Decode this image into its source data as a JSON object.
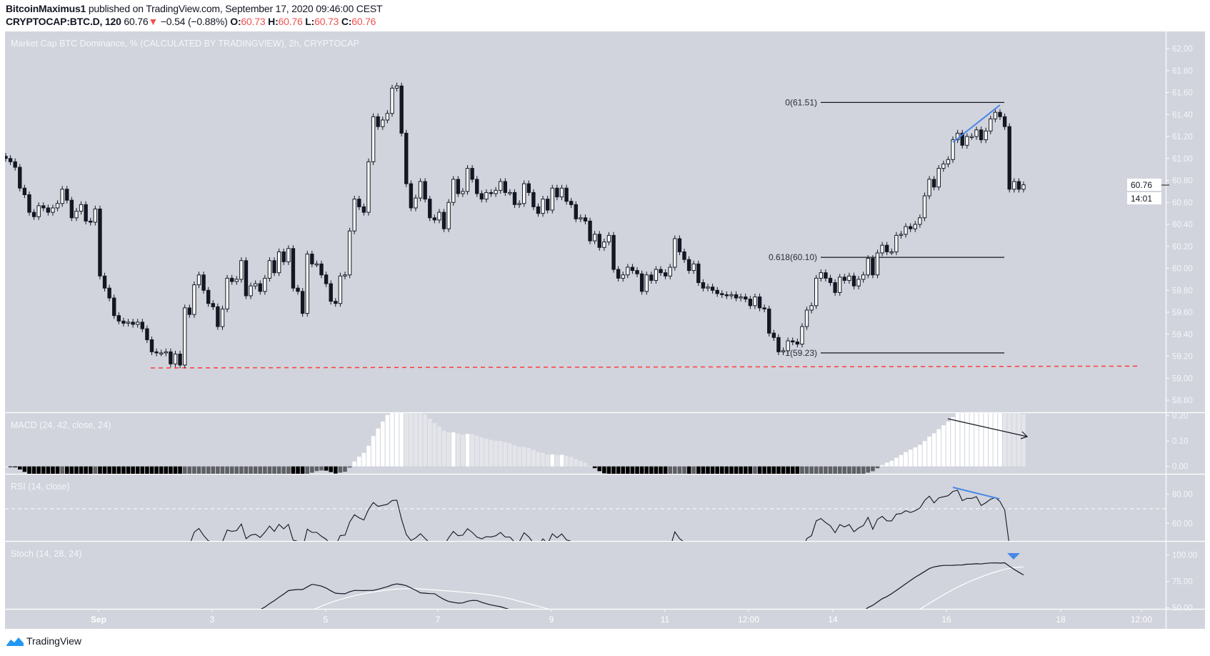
{
  "header": {
    "author": "BitcoinMaximus1",
    "published": " published on TradingView.com, September 17, 2020 09:46:00 CEST"
  },
  "symbol_bar": {
    "symbol": "CRYPTOCAP:BTC.D, 120",
    "last": "60.76",
    "change": "−0.54 (−0.88%)",
    "o_label": "O:",
    "o": "60.73",
    "h_label": "H:",
    "h": "60.76",
    "l_label": "L:",
    "l": "60.73",
    "c_label": "C:",
    "c": "60.76",
    "down_icon": "triangle-down-icon",
    "down_color": "#ef5350"
  },
  "chart_data": {
    "type": "candlestick",
    "title": "Market Cap BTC Dominance, % (CALCULATED BY TRADINGVIEW), 2h, CRYPTOCAP",
    "interval": "2h",
    "background": "#d1d4dc",
    "up_color": "#ffffff",
    "down_color": "#131722",
    "x_ticks": [
      "Sep",
      "3",
      "5",
      "7",
      "9",
      "11",
      "12:00",
      "14",
      "16",
      "18",
      "12:00"
    ],
    "y_ticks": [
      "62.00",
      "61.80",
      "61.60",
      "61.40",
      "61.20",
      "61.00",
      "60.80",
      "60.60",
      "60.40",
      "60.20",
      "60.00",
      "59.80",
      "59.60",
      "59.40",
      "59.20",
      "59.00",
      "58.80"
    ],
    "first_open": 61.02,
    "close": [
      61.0,
      60.97,
      60.92,
      60.73,
      60.67,
      60.51,
      60.47,
      60.57,
      60.55,
      60.51,
      60.55,
      60.59,
      60.72,
      60.62,
      60.46,
      60.52,
      60.58,
      60.43,
      60.42,
      60.54,
      59.93,
      59.82,
      59.73,
      59.57,
      59.52,
      59.5,
      59.51,
      59.49,
      59.51,
      59.45,
      59.35,
      59.24,
      59.23,
      59.23,
      59.24,
      59.13,
      59.22,
      59.12,
      59.64,
      59.58,
      59.85,
      59.94,
      59.8,
      59.68,
      59.65,
      59.47,
      59.63,
      59.91,
      59.88,
      59.9,
      60.07,
      59.75,
      59.84,
      59.86,
      59.79,
      59.91,
      60.07,
      59.96,
      60.15,
      60.06,
      60.18,
      59.82,
      59.79,
      59.59,
      60.13,
      60.04,
      60.04,
      59.94,
      59.86,
      59.7,
      59.68,
      59.93,
      59.94,
      60.34,
      60.63,
      60.56,
      60.51,
      60.97,
      61.38,
      61.29,
      61.35,
      61.41,
      61.64,
      61.66,
      61.23,
      60.77,
      60.55,
      60.64,
      60.79,
      60.63,
      60.46,
      60.44,
      60.51,
      60.36,
      60.6,
      60.81,
      60.68,
      60.7,
      60.91,
      60.81,
      60.68,
      60.63,
      60.69,
      60.68,
      60.71,
      60.79,
      60.69,
      60.69,
      60.58,
      60.59,
      60.77,
      60.69,
      60.56,
      60.5,
      60.63,
      60.53,
      60.73,
      60.65,
      60.73,
      60.61,
      60.58,
      60.45,
      60.46,
      60.43,
      60.25,
      60.31,
      60.19,
      60.24,
      60.3,
      59.99,
      59.91,
      59.94,
      60.01,
      59.98,
      59.95,
      59.79,
      59.94,
      59.89,
      59.99,
      59.96,
      59.93,
      60.01,
      60.27,
      60.15,
      60.08,
      59.98,
      60.04,
      59.87,
      59.82,
      59.83,
      59.8,
      59.77,
      59.76,
      59.75,
      59.76,
      59.73,
      59.74,
      59.72,
      59.66,
      59.74,
      59.64,
      59.63,
      59.41,
      59.37,
      59.24,
      59.25,
      59.34,
      59.33,
      59.31,
      59.47,
      59.62,
      59.66,
      59.91,
      59.96,
      59.91,
      59.87,
      59.78,
      59.92,
      59.89,
      59.93,
      59.84,
      59.9,
      59.94,
      60.09,
      59.94,
      60.14,
      60.21,
      60.15,
      60.15,
      60.3,
      60.31,
      60.38,
      60.36,
      60.4,
      60.46,
      60.66,
      60.81,
      60.74,
      60.91,
      60.95,
      60.99,
      61.17,
      61.23,
      61.12,
      61.2,
      61.2,
      61.26,
      61.17,
      61.25,
      61.36,
      61.42,
      61.38,
      61.29,
      60.72,
      60.79,
      60.72,
      60.76
    ],
    "last_price": "60.76",
    "countdown": "14:01",
    "fib": [
      {
        "label": "0(61.51)",
        "value": 61.51
      },
      {
        "label": "0.618(60.10)",
        "value": 60.1
      },
      {
        "label": "1(59.23)",
        "value": 59.23
      }
    ],
    "support_line": {
      "value": 59.1,
      "color": "#ff3b3b",
      "style": "dashed"
    },
    "trendline_color": "#4a86e8",
    "indicators": {
      "macd": {
        "label": "MACD (24, 42, close, 24)",
        "fast": 24,
        "slow": 42,
        "signal": 24,
        "ticks": [
          "0.20",
          "0.10",
          "0.00"
        ],
        "colors": {
          "pos_rising": "#ffffff",
          "pos_falling": "#e4e5ea",
          "neg_falling": "#000000",
          "neg_rising": "#5f6066"
        }
      },
      "rsi": {
        "label": "RSI (14, close)",
        "length": 14,
        "band": 70,
        "ticks": [
          "80.00",
          "60.00"
        ]
      },
      "stoch": {
        "label": "Stoch (14, 28, 24)",
        "length": 14,
        "smooth_k": 28,
        "smooth_d": 24,
        "ticks": [
          "100.00",
          "75.00",
          "50.00"
        ],
        "signal_marker_color": "#4a86e8"
      }
    }
  },
  "footer": {
    "brand": "TradingView",
    "logo_icon": "tradingview-cloud-icon"
  }
}
